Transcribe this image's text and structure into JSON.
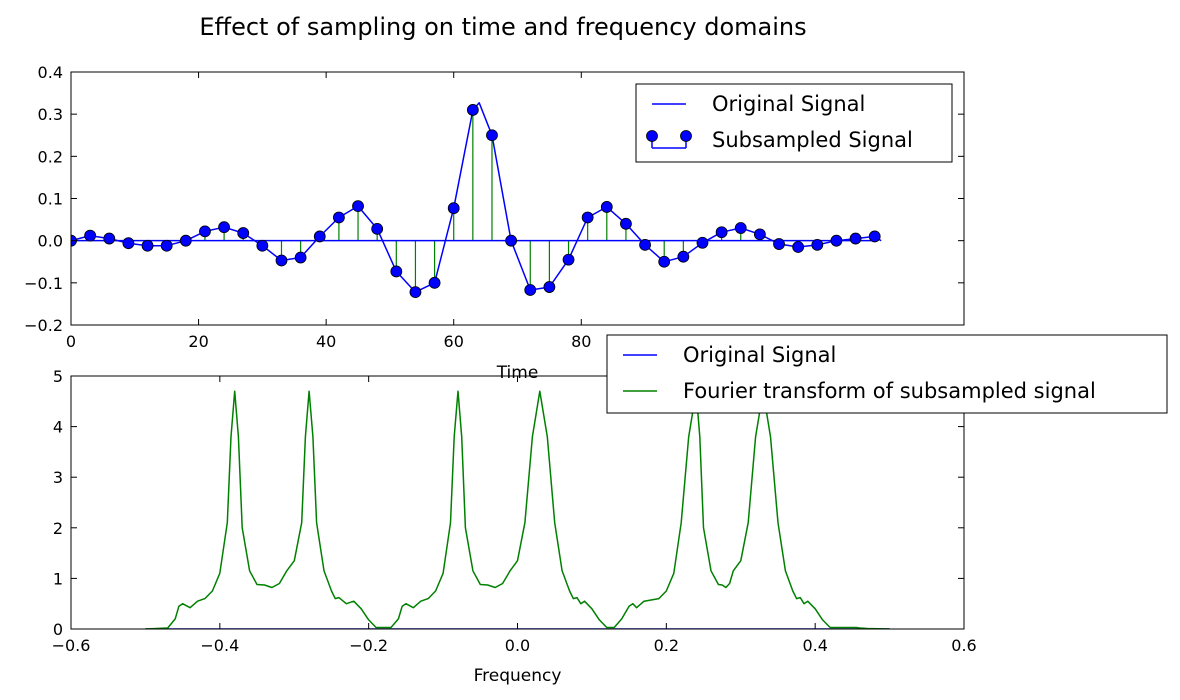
{
  "figure": {
    "title": "Effect of sampling on time and frequency domains"
  },
  "chart_data": [
    {
      "type": "line",
      "role": "time-domain",
      "xlabel": "Time",
      "ylabel": "",
      "xlim": [
        0,
        140
      ],
      "ylim": [
        -0.2,
        0.4
      ],
      "xticks": [
        0,
        20,
        40,
        60,
        80
      ],
      "xtick_labels": [
        "0",
        "20",
        "40",
        "60",
        "80"
      ],
      "yticks": [
        -0.2,
        -0.1,
        0.0,
        0.1,
        0.2,
        0.3,
        0.4
      ],
      "ytick_labels": [
        "−0.2",
        "−0.1",
        "0.0",
        "0.1",
        "0.2",
        "0.3",
        "0.4"
      ],
      "grid": false,
      "legend_position": "top-right",
      "series": [
        {
          "name": "Original Signal",
          "kind": "line",
          "color": "#0000ff",
          "x": [
            0,
            3,
            6,
            9,
            12,
            15,
            18,
            21,
            24,
            27,
            30,
            33,
            36,
            39,
            42,
            45,
            48,
            51,
            54,
            57,
            60,
            63,
            64,
            66,
            69,
            72,
            75,
            78,
            81,
            84,
            87,
            90,
            93,
            96,
            99,
            102,
            105,
            108,
            111,
            114,
            117,
            120,
            123,
            126,
            127
          ],
          "y": [
            0.0,
            0.012,
            0.005,
            -0.006,
            -0.012,
            -0.012,
            0.0,
            0.022,
            0.032,
            0.018,
            -0.012,
            -0.047,
            -0.04,
            0.01,
            0.055,
            0.082,
            0.028,
            -0.073,
            -0.122,
            -0.1,
            0.077,
            0.31,
            0.327,
            0.25,
            0.0,
            -0.117,
            -0.11,
            -0.045,
            0.055,
            0.08,
            0.04,
            -0.01,
            -0.05,
            -0.038,
            -0.005,
            0.02,
            0.03,
            0.015,
            -0.008,
            -0.015,
            -0.01,
            0.0,
            0.005,
            0.01,
            0.0
          ]
        },
        {
          "name": "Subsampled Signal",
          "kind": "stem",
          "color": "#0000ff",
          "stem_color": "#008000",
          "x": [
            0,
            3,
            6,
            9,
            12,
            15,
            18,
            21,
            24,
            27,
            30,
            33,
            36,
            39,
            42,
            45,
            48,
            51,
            54,
            57,
            60,
            63,
            66,
            69,
            72,
            75,
            78,
            81,
            84,
            87,
            90,
            93,
            96,
            99,
            102,
            105,
            108,
            111,
            114,
            117,
            120,
            123,
            126
          ],
          "y": [
            0.0,
            0.012,
            0.005,
            -0.006,
            -0.012,
            -0.012,
            0.0,
            0.022,
            0.032,
            0.018,
            -0.012,
            -0.047,
            -0.04,
            0.01,
            0.055,
            0.082,
            0.028,
            -0.073,
            -0.122,
            -0.1,
            0.077,
            0.31,
            0.25,
            0.0,
            -0.117,
            -0.11,
            -0.045,
            0.055,
            0.08,
            0.04,
            -0.01,
            -0.05,
            -0.038,
            -0.005,
            0.02,
            0.03,
            0.015,
            -0.008,
            -0.015,
            -0.01,
            0.0,
            0.005,
            0.01
          ]
        }
      ]
    },
    {
      "type": "line",
      "role": "frequency-domain",
      "xlabel": "Frequency",
      "ylabel": "",
      "xlim": [
        -0.6,
        0.6
      ],
      "ylim": [
        0,
        5
      ],
      "xticks": [
        -0.6,
        -0.4,
        -0.2,
        0.0,
        0.2,
        0.4,
        0.6
      ],
      "xtick_labels": [
        "−0.6",
        "−0.4",
        "−0.2",
        "0.0",
        "0.2",
        "0.4",
        "0.6"
      ],
      "yticks": [
        0,
        1,
        2,
        3,
        4,
        5
      ],
      "ytick_labels": [
        "0",
        "1",
        "2",
        "3",
        "4",
        "5"
      ],
      "grid": false,
      "legend_position": "top-right",
      "series": [
        {
          "name": "Original Signal",
          "color": "#0000ff",
          "x": [
            -0.5,
            0.5
          ],
          "y": [
            0.0,
            0.0
          ]
        },
        {
          "name": "Fourier transform of subsampled signal",
          "color": "#008000",
          "x": [
            -0.5,
            -0.47,
            -0.46,
            -0.455,
            -0.45,
            -0.44,
            -0.43,
            -0.42,
            -0.41,
            -0.4,
            -0.39,
            -0.385,
            -0.38,
            -0.375,
            -0.37,
            -0.36,
            -0.35,
            -0.34,
            -0.33,
            -0.32,
            -0.31,
            -0.3,
            -0.29,
            -0.285,
            -0.28,
            -0.275,
            -0.27,
            -0.26,
            -0.25,
            -0.245,
            -0.24,
            -0.23,
            -0.22,
            -0.21,
            -0.2,
            -0.19,
            -0.17,
            -0.16,
            -0.155,
            -0.15,
            -0.14,
            -0.13,
            -0.12,
            -0.11,
            -0.1,
            -0.09,
            -0.085,
            -0.08,
            -0.075,
            -0.07,
            -0.06,
            -0.05,
            -0.04,
            -0.03,
            -0.02,
            -0.01,
            0.0,
            0.01,
            0.02,
            0.03,
            0.04,
            0.05,
            0.06,
            0.07,
            0.075,
            0.08,
            0.085,
            0.09,
            0.1,
            0.11,
            0.12,
            0.13,
            0.14,
            0.15,
            0.155,
            0.16,
            0.17,
            0.19,
            0.2,
            0.21,
            0.22,
            0.23,
            0.24,
            0.245,
            0.25,
            0.26,
            0.27,
            0.275,
            0.28,
            0.285,
            0.29,
            0.3,
            0.31,
            0.32,
            0.33,
            0.34,
            0.35,
            0.36,
            0.37,
            0.375,
            0.38,
            0.385,
            0.39,
            0.4,
            0.41,
            0.42,
            0.43,
            0.44,
            0.45,
            0.455,
            0.46,
            0.47,
            0.5
          ],
          "y": [
            0.0,
            0.02,
            0.2,
            0.45,
            0.5,
            0.42,
            0.55,
            0.6,
            0.75,
            1.1,
            2.1,
            3.8,
            4.7,
            3.8,
            2.0,
            1.15,
            0.88,
            0.87,
            0.82,
            0.9,
            1.15,
            1.35,
            2.1,
            3.8,
            4.7,
            3.8,
            2.1,
            1.15,
            0.75,
            0.6,
            0.62,
            0.5,
            0.55,
            0.4,
            0.18,
            0.03,
            0.03,
            0.2,
            0.45,
            0.5,
            0.42,
            0.55,
            0.6,
            0.75,
            1.1,
            2.1,
            3.8,
            4.7,
            3.8,
            2.0,
            1.15,
            0.88,
            0.87,
            0.82,
            0.9,
            1.15,
            1.35,
            2.1,
            3.8,
            4.7,
            3.8,
            2.1,
            1.15,
            0.75,
            0.6,
            0.62,
            0.5,
            0.55,
            0.4,
            0.18,
            0.03,
            0.03,
            0.2,
            0.45,
            0.5,
            0.42,
            0.55,
            0.6,
            0.75,
            1.1,
            2.1,
            3.8,
            4.7,
            3.8,
            2.0,
            1.15,
            0.88,
            0.87,
            0.82,
            0.9,
            1.15,
            1.35,
            2.1,
            3.8,
            4.7,
            3.8,
            2.1,
            1.15,
            0.75,
            0.6,
            0.62,
            0.5,
            0.55,
            0.4,
            0.18,
            0.03,
            0.03,
            0.03,
            0.03,
            0.03,
            0.02,
            0.01,
            0.0
          ]
        }
      ]
    }
  ]
}
